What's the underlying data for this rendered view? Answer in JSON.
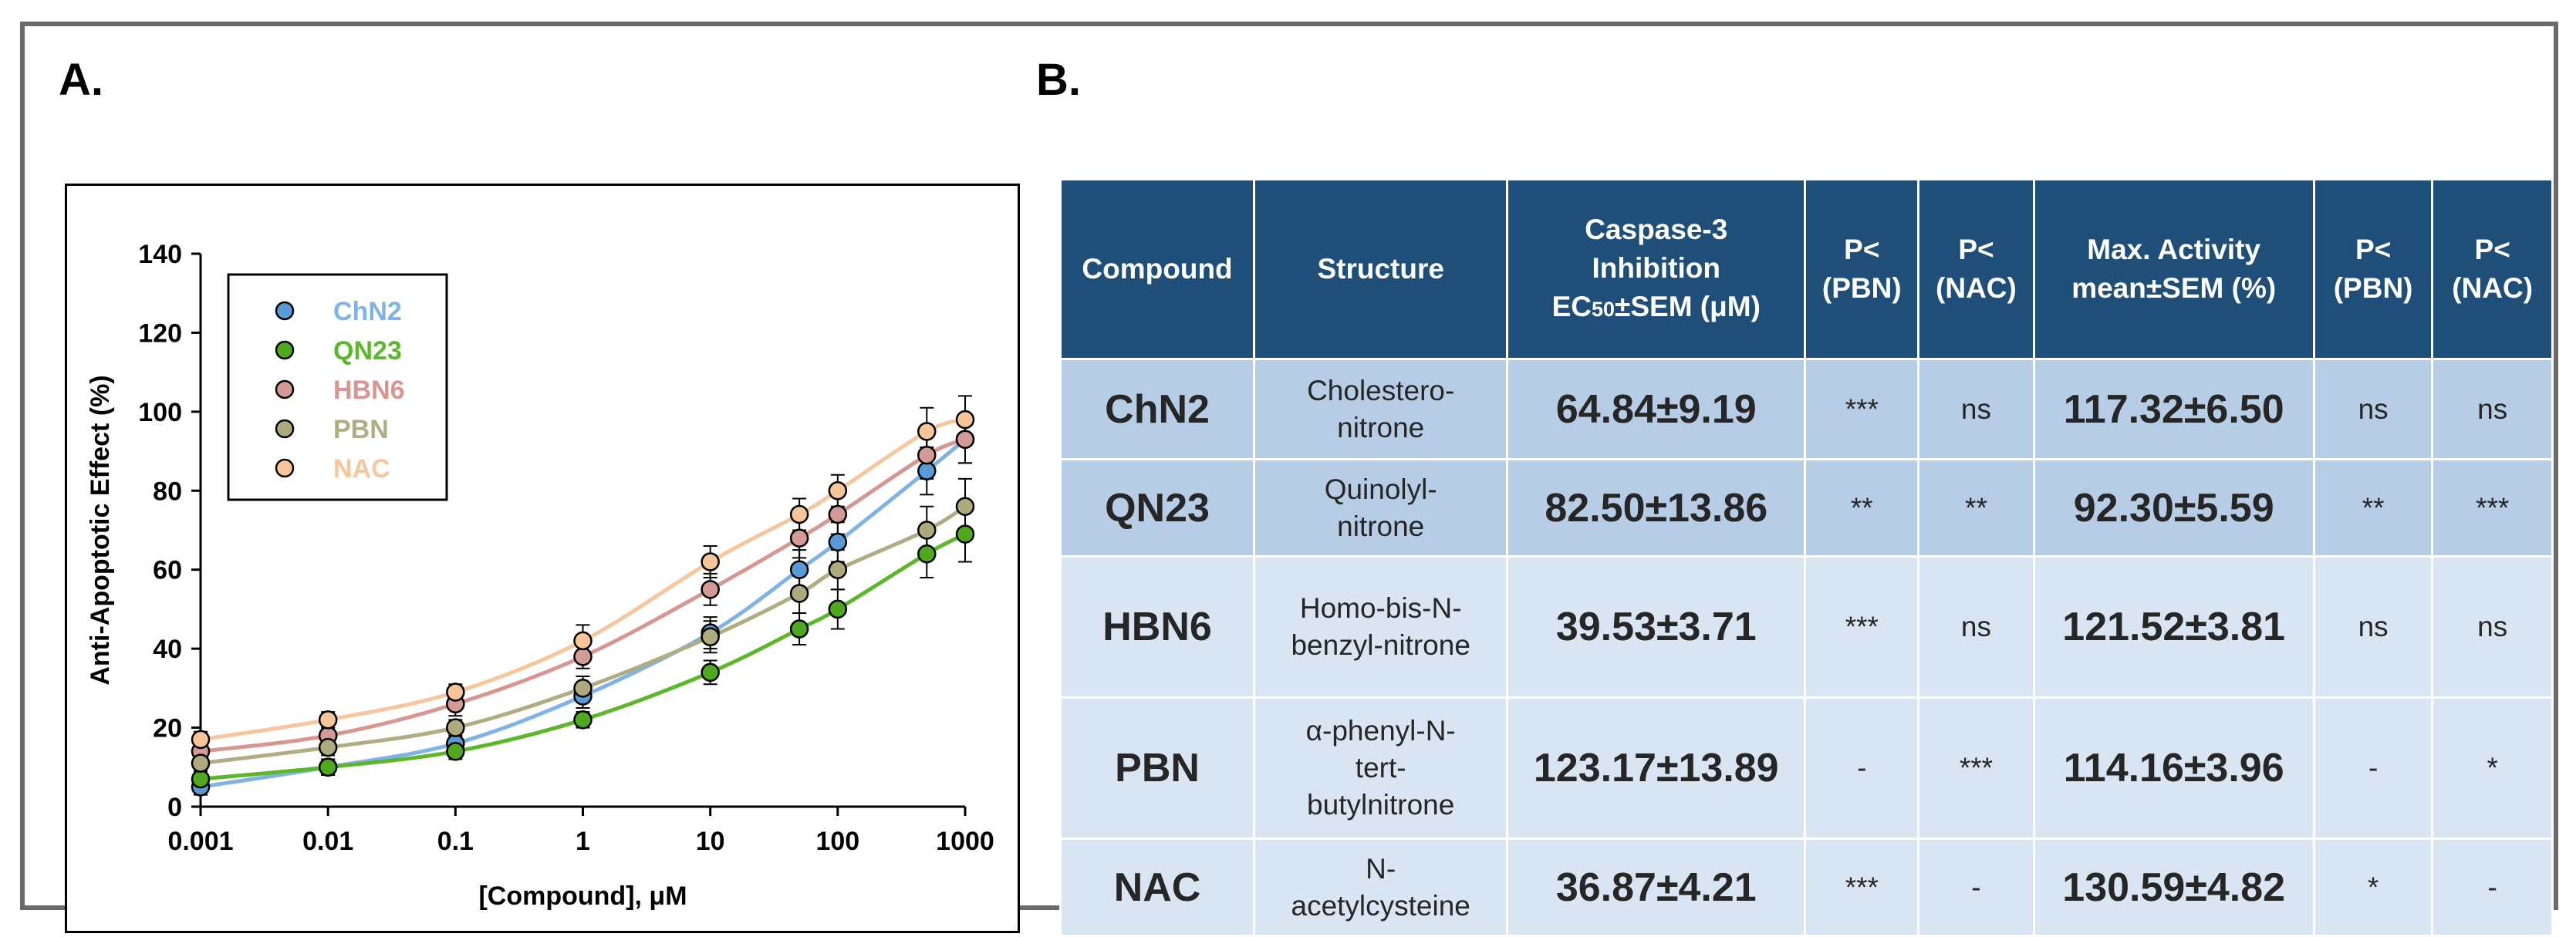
{
  "panel_a": {
    "label": "A."
  },
  "panel_b": {
    "label": "B."
  },
  "chart_data": {
    "type": "scatter",
    "title": "",
    "xlabel": "[Compound], μM",
    "ylabel": "Anti-Apoptotic  Effect (%)",
    "xscale": "log",
    "xlim": [
      0.001,
      1000
    ],
    "ylim": [
      0,
      140
    ],
    "x_ticks": [
      0.001,
      0.01,
      0.1,
      1,
      10,
      100,
      1000
    ],
    "x_tick_labels": [
      "0.001",
      "0.01",
      "0.1",
      "1",
      "10",
      "100",
      "1000"
    ],
    "y_ticks": [
      0,
      20,
      40,
      60,
      80,
      100,
      120,
      140
    ],
    "y_tick_labels": [
      "0",
      "20",
      "40",
      "60",
      "80",
      "100",
      "120",
      "140"
    ],
    "grid": false,
    "legend_position": "top-left",
    "x": [
      0.001,
      0.01,
      0.1,
      1,
      10,
      50,
      100,
      500,
      1000
    ],
    "series": [
      {
        "name": "ChN2",
        "color": "#5b9bd5",
        "line_color": "#7fb3e6",
        "values": [
          5,
          10,
          16,
          28,
          44,
          60,
          67,
          85,
          93
        ],
        "errors": [
          2,
          2,
          2,
          3,
          4,
          5,
          5,
          6,
          6
        ]
      },
      {
        "name": "QN23",
        "color": "#4fa81e",
        "line_color": "#5cb82a",
        "values": [
          7,
          10,
          14,
          22,
          34,
          45,
          50,
          64,
          69
        ],
        "errors": [
          2,
          2,
          2,
          2,
          3,
          4,
          5,
          6,
          7
        ]
      },
      {
        "name": "HBN6",
        "color": "#d49a96",
        "line_color": "#d9958f",
        "values": [
          14,
          18,
          26,
          38,
          55,
          68,
          74,
          89,
          93
        ],
        "errors": [
          2,
          2,
          3,
          3,
          4,
          5,
          5,
          6,
          6
        ]
      },
      {
        "name": "PBN",
        "color": "#adaa7e",
        "line_color": "#b0ad82",
        "values": [
          11,
          15,
          20,
          30,
          43,
          54,
          60,
          70,
          76
        ],
        "errors": [
          2,
          2,
          2,
          3,
          4,
          5,
          5,
          6,
          7
        ]
      },
      {
        "name": "NAC",
        "color": "#f6c59a",
        "line_color": "#f7c69c",
        "values": [
          17,
          22,
          29,
          42,
          62,
          74,
          80,
          95,
          98
        ],
        "errors": [
          2,
          2,
          2,
          4,
          4,
          4,
          4,
          6,
          6
        ]
      }
    ]
  },
  "table": {
    "headers": [
      "Compound",
      "Structure",
      "Caspase-3\nInhibition\nEC50±SEM (μM)",
      "P<\n(PBN)",
      "P<\n(NAC)",
      "Max. Activity\nmean±SEM (%)",
      "P<\n(PBN)",
      "P<\n(NAC)"
    ],
    "rows": [
      {
        "compound": "ChN2",
        "structure": "Cholestero-\nnitrone",
        "ec50": "64.84±9.19",
        "p_pbn_1": "***",
        "p_nac_1": "ns",
        "max_activity": "117.32±6.50",
        "p_pbn_2": "ns",
        "p_nac_2": "ns"
      },
      {
        "compound": "QN23",
        "structure": "Quinolyl-\nnitrone",
        "ec50": "82.50±13.86",
        "p_pbn_1": "**",
        "p_nac_1": "**",
        "max_activity": "92.30±5.59",
        "p_pbn_2": "**",
        "p_nac_2": "***"
      },
      {
        "compound": "HBN6",
        "structure": "Homo-bis-N-\nbenzyl-nitrone",
        "ec50": "39.53±3.71",
        "p_pbn_1": "***",
        "p_nac_1": "ns",
        "max_activity": "121.52±3.81",
        "p_pbn_2": "ns",
        "p_nac_2": "ns"
      },
      {
        "compound": "PBN",
        "structure": "α-phenyl-N-\ntert-\nbutylnitrone",
        "ec50": "123.17±13.89",
        "p_pbn_1": "-",
        "p_nac_1": "***",
        "max_activity": "114.16±3.96",
        "p_pbn_2": "-",
        "p_nac_2": "*"
      },
      {
        "compound": "NAC",
        "structure": "N-\nacetylcysteine",
        "ec50": "36.87±4.21",
        "p_pbn_1": "***",
        "p_nac_1": "-",
        "max_activity": "130.59±4.82",
        "p_pbn_2": "*",
        "p_nac_2": "-"
      }
    ]
  }
}
